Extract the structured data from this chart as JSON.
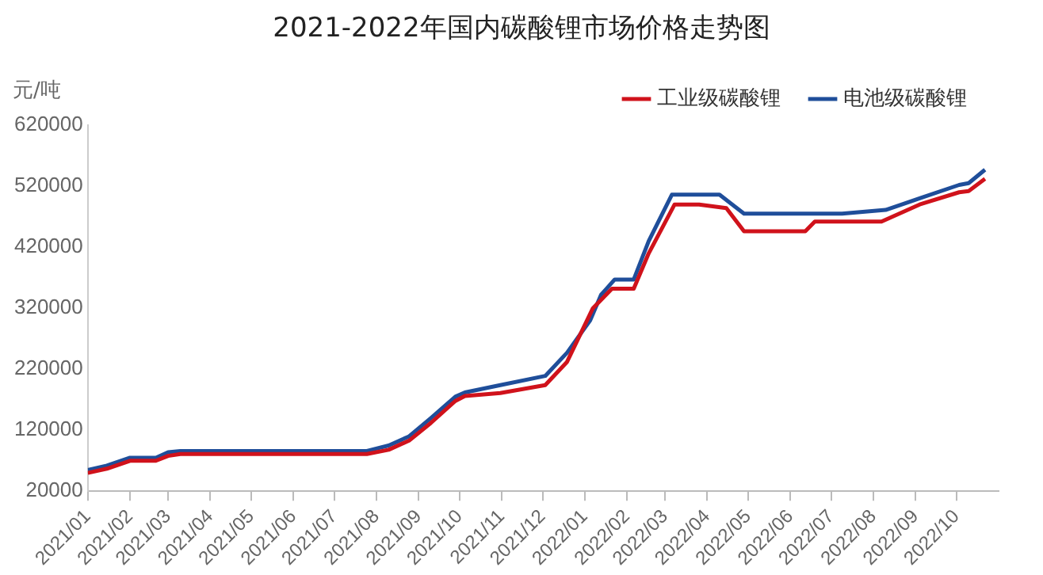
{
  "chart_data": {
    "type": "line",
    "title": "2021-2022年国内碳酸锂市场价格走势图",
    "ylabel": "元/吨",
    "legend": "top right",
    "grid": false,
    "marker": "none",
    "line_style": "solid",
    "xlim": [
      "2021-01",
      "2022-11"
    ],
    "xticks": [
      {
        "value": "2021-01",
        "label": "2021/01"
      },
      {
        "value": "2021-02",
        "label": "2021/02"
      },
      {
        "value": "2021-03",
        "label": "2021/03"
      },
      {
        "value": "2021-04",
        "label": "2021/04"
      },
      {
        "value": "2021-05",
        "label": "2021/05"
      },
      {
        "value": "2021-06",
        "label": "2021/06"
      },
      {
        "value": "2021-07",
        "label": "2021/07"
      },
      {
        "value": "2021-08",
        "label": "2021/08"
      },
      {
        "value": "2021-09",
        "label": "2021/09"
      },
      {
        "value": "2021-10",
        "label": "2021/10"
      },
      {
        "value": "2021-11",
        "label": "2021/11"
      },
      {
        "value": "2021-12",
        "label": "2021/12"
      },
      {
        "value": "2022-01",
        "label": "2022/01"
      },
      {
        "value": "2022-02",
        "label": "2022/02"
      },
      {
        "value": "2022-03",
        "label": "2022/03"
      },
      {
        "value": "2022-04",
        "label": "2022/04"
      },
      {
        "value": "2022-05",
        "label": "2022/05"
      },
      {
        "value": "2022-06",
        "label": "2022/06"
      },
      {
        "value": "2022-07",
        "label": "2022/07"
      },
      {
        "value": "2022-08",
        "label": "2022/08"
      },
      {
        "value": "2022-09",
        "label": "2022/09"
      },
      {
        "value": "2022-10",
        "label": "2022/10"
      }
    ],
    "ylim": [
      20000,
      620000
    ],
    "yticks": [
      20000,
      120000,
      220000,
      320000,
      420000,
      520000,
      620000
    ],
    "series": [
      {
        "name": "工业级碳酸锂",
        "color": "#d0121b",
        "x": [
          "2021-01-01",
          "2021-01-15",
          "2021-02-01",
          "2021-02-20",
          "2021-03-01",
          "2021-03-10",
          "2021-07-25",
          "2021-08-10",
          "2021-08-25",
          "2021-09-10",
          "2021-09-28",
          "2021-10-05",
          "2021-10-31",
          "2021-12-03",
          "2021-12-19",
          "2022-01-07",
          "2022-01-21",
          "2022-02-06",
          "2022-02-17",
          "2022-03-08",
          "2022-03-26",
          "2022-04-15",
          "2022-04-28",
          "2022-06-12",
          "2022-06-19",
          "2022-08-07",
          "2022-09-04",
          "2022-10-03",
          "2022-10-10",
          "2022-10-22"
        ],
        "values": [
          50000,
          57000,
          70000,
          70000,
          78000,
          81000,
          81000,
          88000,
          103000,
          132000,
          168000,
          176000,
          181000,
          194000,
          232000,
          320000,
          352000,
          352000,
          410000,
          490000,
          490000,
          484000,
          446000,
          446000,
          462000,
          462000,
          490000,
          510000,
          512000,
          532000
        ]
      },
      {
        "name": "电池级碳酸锂",
        "color": "#1f4e9a",
        "x": [
          "2021-01-01",
          "2021-01-15",
          "2021-02-01",
          "2021-02-20",
          "2021-03-01",
          "2021-03-10",
          "2021-07-25",
          "2021-08-10",
          "2021-08-25",
          "2021-09-10",
          "2021-09-28",
          "2021-10-05",
          "2021-10-31",
          "2021-12-03",
          "2021-12-19",
          "2022-01-05",
          "2022-01-13",
          "2022-01-23",
          "2022-02-06",
          "2022-02-17",
          "2022-03-06",
          "2022-04-10",
          "2022-04-28",
          "2022-07-09",
          "2022-08-10",
          "2022-09-04",
          "2022-10-03",
          "2022-10-10",
          "2022-10-22"
        ],
        "values": [
          55000,
          62000,
          75000,
          75000,
          84000,
          86000,
          86000,
          95000,
          110000,
          140000,
          175000,
          182000,
          194000,
          209000,
          247000,
          300000,
          342000,
          367000,
          367000,
          430000,
          506000,
          506000,
          475000,
          475000,
          481000,
          500000,
          522000,
          525000,
          547000
        ]
      }
    ]
  }
}
